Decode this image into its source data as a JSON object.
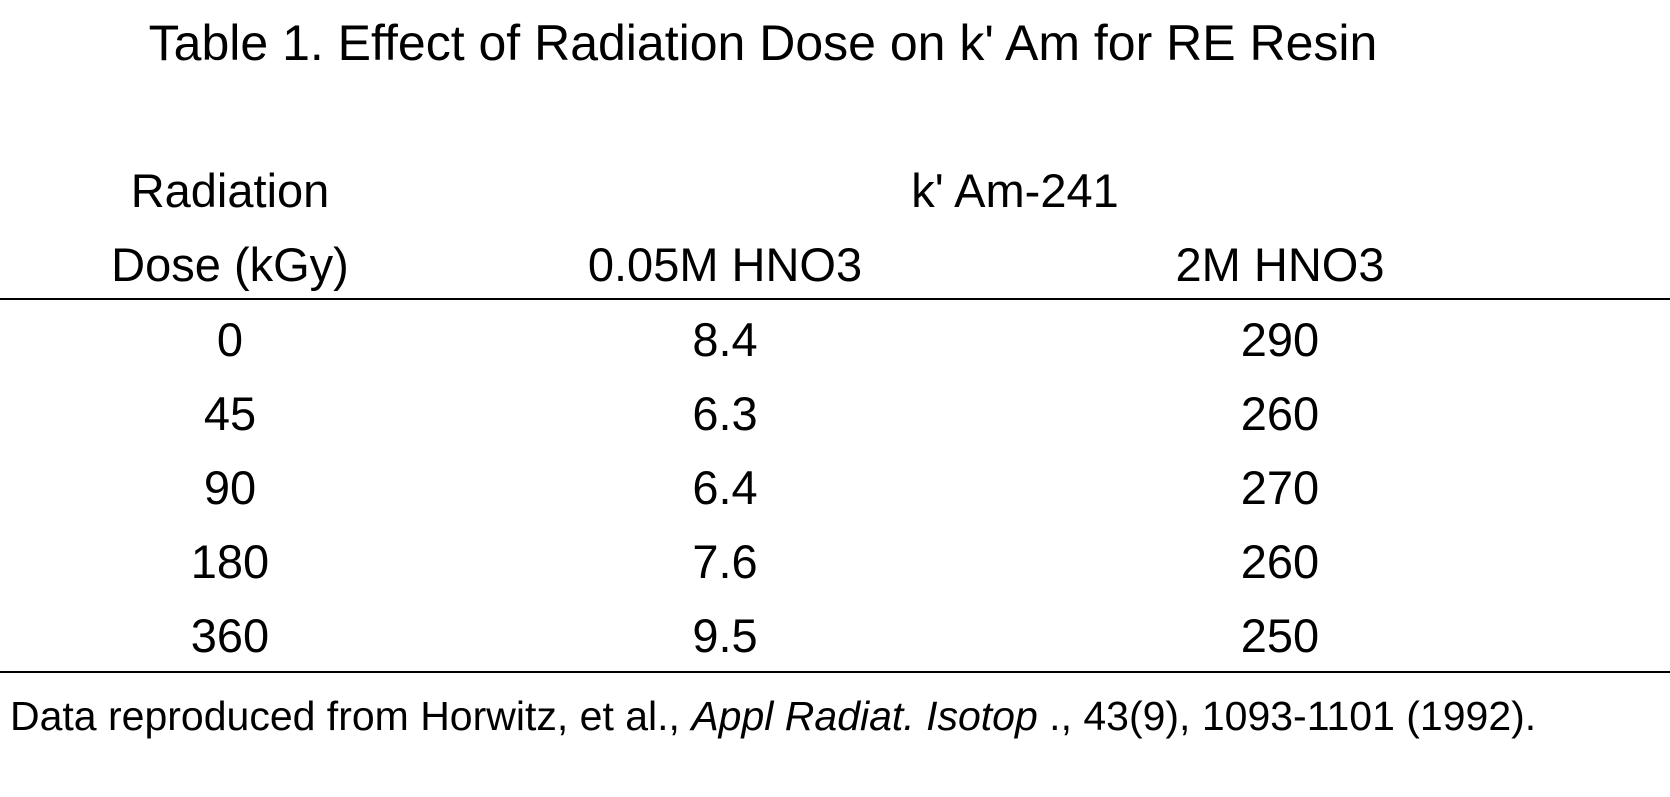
{
  "table": {
    "title": "Table 1.  Effect of Radiation Dose on k' Am for RE Resin",
    "header": {
      "col1_line1": "Radiation",
      "col1_line2": "Dose (kGy)",
      "group_label": "k' Am-241",
      "col2": "0.05M HNO3",
      "col3": "2M HNO3"
    },
    "rows": [
      {
        "dose": "0",
        "low_acid": "8.4",
        "high_acid": "290"
      },
      {
        "dose": "45",
        "low_acid": "6.3",
        "high_acid": "260"
      },
      {
        "dose": "90",
        "low_acid": "6.4",
        "high_acid": "270"
      },
      {
        "dose": "180",
        "low_acid": "7.6",
        "high_acid": "260"
      },
      {
        "dose": "360",
        "low_acid": "9.5",
        "high_acid": "250"
      }
    ]
  },
  "footnote": {
    "prefix": "Data reproduced from Horwitz, et al., ",
    "journal": "Appl Radiat. Isotop",
    "suffix": " ., 43(9), 1093-1101 (1992)."
  }
}
